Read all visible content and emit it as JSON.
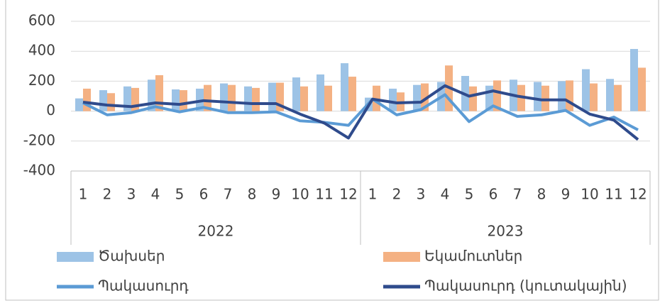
{
  "chart_data": {
    "type": "bar",
    "categories": [
      "1",
      "2",
      "3",
      "4",
      "5",
      "6",
      "7",
      "8",
      "9",
      "10",
      "11",
      "12",
      "1",
      "2",
      "3",
      "4",
      "5",
      "6",
      "7",
      "8",
      "9",
      "10",
      "11",
      "12"
    ],
    "category_groups": [
      "2022",
      "2023"
    ],
    "series": [
      {
        "name": "Ծախսեր",
        "type": "bar",
        "color": "#9dc3e6",
        "values": [
          85,
          140,
          165,
          210,
          145,
          150,
          185,
          165,
          190,
          225,
          245,
          320,
          90,
          150,
          175,
          195,
          235,
          170,
          210,
          195,
          200,
          280,
          215,
          415
        ]
      },
      {
        "name": "Եկամուտներ",
        "type": "bar",
        "color": "#f4b183",
        "values": [
          150,
          120,
          155,
          240,
          140,
          175,
          175,
          155,
          190,
          165,
          170,
          230,
          170,
          125,
          185,
          305,
          165,
          205,
          175,
          170,
          205,
          185,
          175,
          290
        ]
      },
      {
        "name": "Պակասուրդ",
        "type": "line",
        "color": "#5b9bd5",
        "values": [
          55,
          -25,
          -10,
          30,
          -5,
          25,
          -10,
          -10,
          -5,
          -65,
          -75,
          -95,
          80,
          -25,
          10,
          110,
          -70,
          35,
          -35,
          -25,
          5,
          -95,
          -40,
          -125
        ]
      },
      {
        "name": "Պակասուրդ (կուտակային)",
        "type": "line",
        "color": "#2f4b8c",
        "values": [
          60,
          40,
          30,
          55,
          45,
          70,
          60,
          50,
          50,
          -20,
          -80,
          -180,
          80,
          55,
          60,
          170,
          100,
          135,
          100,
          75,
          75,
          -20,
          -60,
          -190
        ]
      }
    ],
    "ylim": [
      -400,
      600
    ],
    "yticks": [
      -400,
      -200,
      0,
      200,
      400,
      600
    ],
    "grid": true
  }
}
